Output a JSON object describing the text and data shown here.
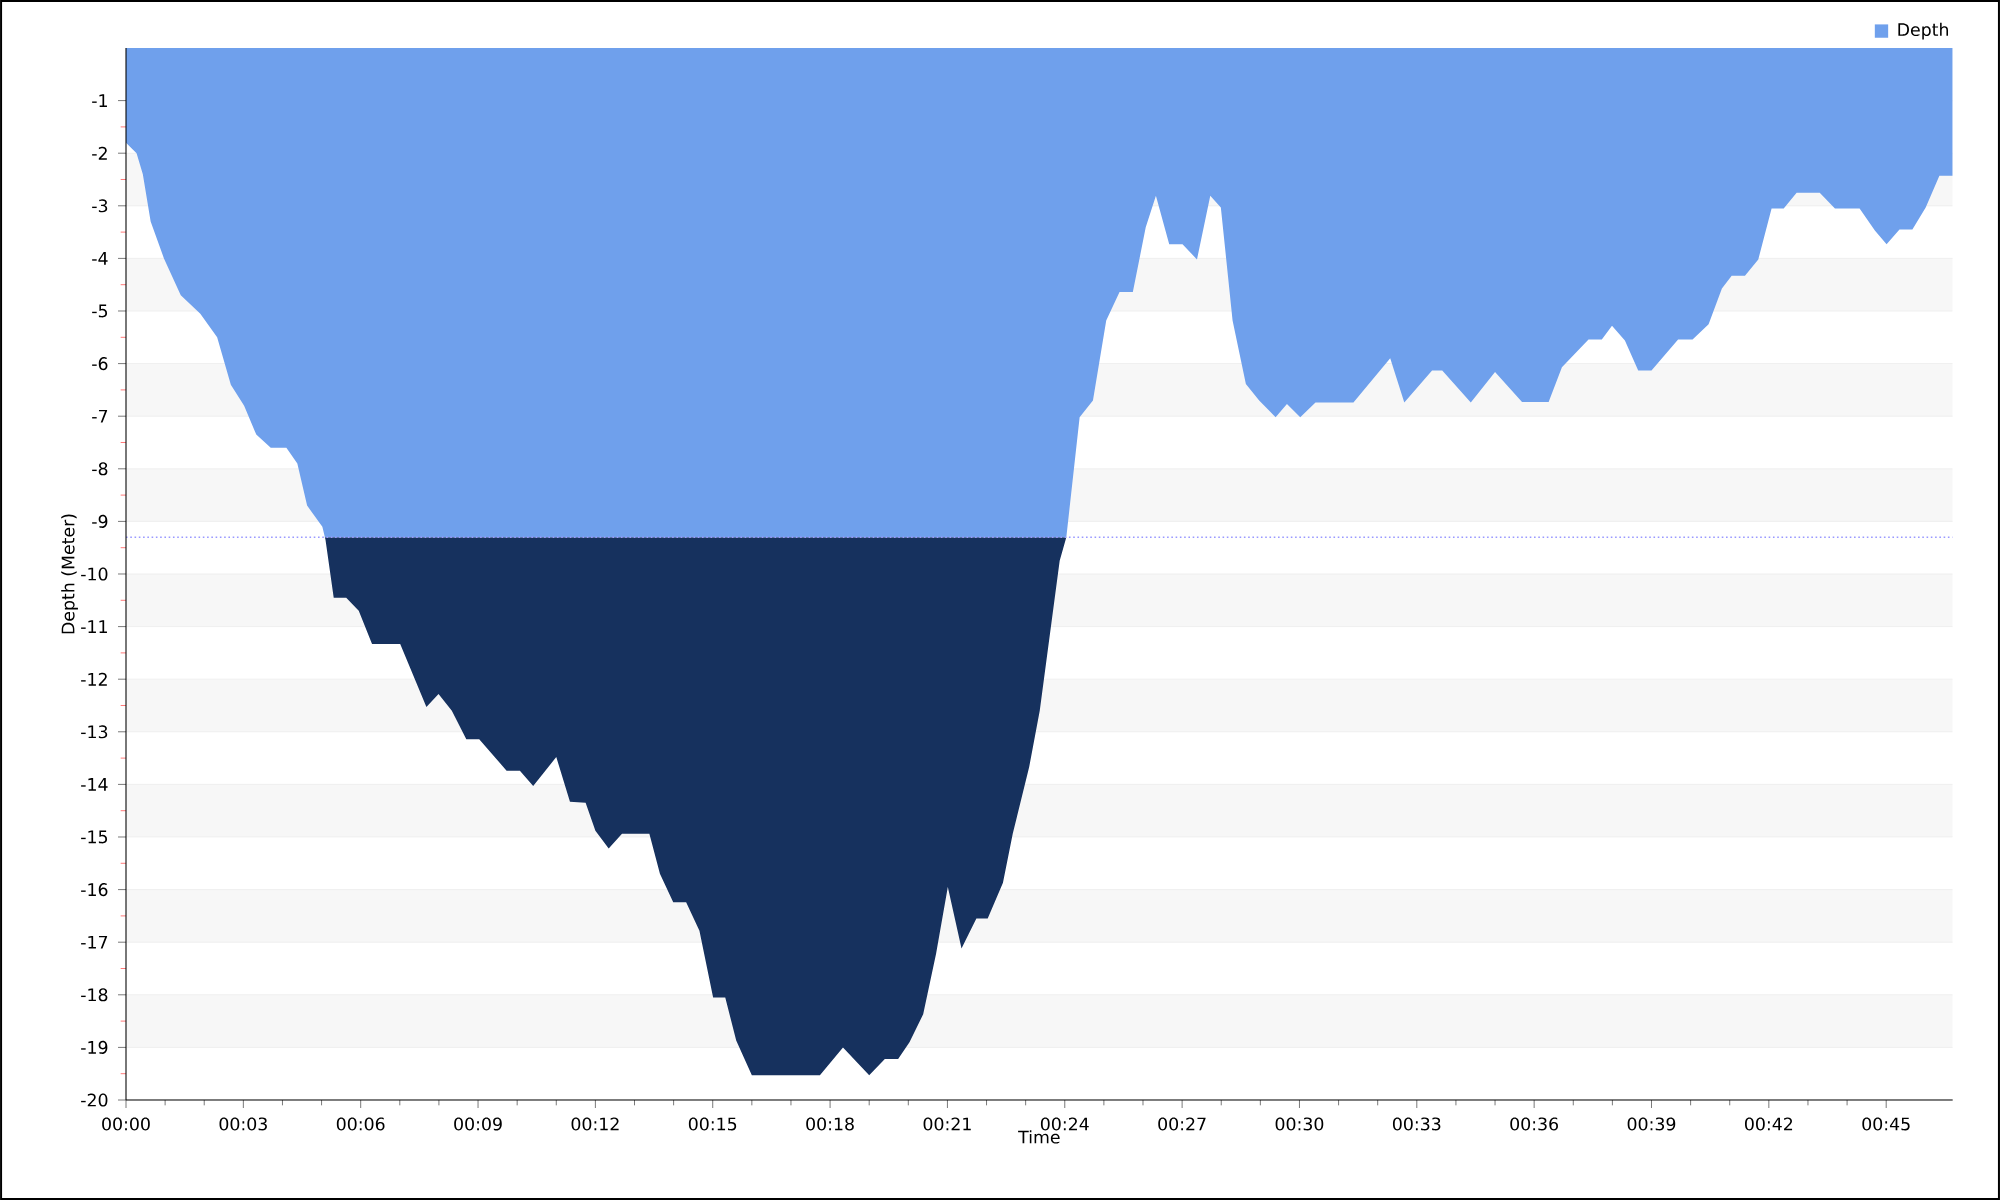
{
  "chart_data": {
    "type": "area",
    "xlabel": "Time",
    "ylabel": "Depth (Meter)",
    "x": [
      0,
      0.27,
      0.43,
      0.63,
      0.97,
      1.4,
      1.9,
      2.33,
      2.68,
      3.02,
      3.33,
      3.7,
      4.1,
      4.38,
      4.63,
      5.02,
      5.1,
      5.31,
      5.63,
      5.95,
      6.29,
      7.01,
      7.68,
      7.99,
      8.33,
      8.7,
      9.03,
      9.73,
      10.07,
      10.41,
      11.0,
      11.35,
      11.75,
      12.0,
      12.34,
      12.68,
      13.38,
      13.65,
      13.99,
      14.32,
      14.66,
      15.01,
      15.32,
      15.6,
      16.0,
      17.74,
      18.33,
      19.0,
      19.4,
      19.74,
      20.03,
      20.38,
      20.71,
      21.01,
      21.36,
      21.74,
      22.03,
      22.42,
      22.67,
      23.09,
      23.36,
      23.87,
      24.04,
      24.38,
      24.72,
      25.06,
      25.4,
      25.74,
      26.07,
      26.33,
      26.67,
      27.01,
      27.38,
      27.72,
      27.99,
      28.29,
      28.63,
      28.97,
      29.39,
      29.68,
      30.02,
      30.41,
      31.38,
      32.32,
      32.68,
      33.39,
      33.65,
      34.38,
      35.0,
      35.69,
      36.37,
      36.71,
      37.39,
      37.73,
      37.99,
      38.32,
      38.66,
      39.0,
      39.68,
      40.05,
      40.46,
      40.8,
      41.05,
      41.39,
      41.73,
      42.07,
      42.38,
      42.71,
      43.3,
      43.69,
      44.32,
      44.71,
      45.01,
      45.34,
      45.67,
      46.01,
      46.36,
      46.7
    ],
    "series": [
      {
        "name": "Depth",
        "color": "#6fa0ec",
        "values": [
          -1.8,
          -2.0,
          -2.4,
          -3.3,
          -4.0,
          -4.7,
          -5.05,
          -5.5,
          -6.4,
          -6.8,
          -7.35,
          -7.6,
          -7.6,
          -7.9,
          -8.7,
          -9.1,
          -9.35,
          -10.45,
          -10.45,
          -10.7,
          -11.33,
          -11.33,
          -12.53,
          -12.28,
          -12.6,
          -13.14,
          -13.14,
          -13.74,
          -13.74,
          -14.03,
          -13.48,
          -14.33,
          -14.35,
          -14.88,
          -15.22,
          -14.94,
          -14.94,
          -15.7,
          -16.24,
          -16.24,
          -16.78,
          -18.05,
          -18.05,
          -18.87,
          -19.53,
          -19.53,
          -19.0,
          -19.53,
          -19.22,
          -19.22,
          -18.9,
          -18.37,
          -17.22,
          -15.95,
          -17.12,
          -16.55,
          -16.55,
          -15.87,
          -14.94,
          -13.67,
          -12.6,
          -9.75,
          -9.3,
          -7.02,
          -6.7,
          -5.18,
          -4.64,
          -4.64,
          -3.41,
          -2.81,
          -3.73,
          -3.73,
          -4.02,
          -2.81,
          -3.03,
          -5.18,
          -6.39,
          -6.7,
          -7.02,
          -6.77,
          -7.02,
          -6.74,
          -6.74,
          -5.9,
          -6.74,
          -6.13,
          -6.13,
          -6.74,
          -6.16,
          -6.73,
          -6.73,
          -6.07,
          -5.54,
          -5.54,
          -5.28,
          -5.56,
          -6.13,
          -6.13,
          -5.54,
          -5.54,
          -5.25,
          -4.57,
          -4.33,
          -4.33,
          -4.02,
          -3.05,
          -3.05,
          -2.75,
          -2.75,
          -3.05,
          -3.05,
          -3.47,
          -3.73,
          -3.45,
          -3.45,
          -3.03,
          -2.43,
          -2.43
        ]
      }
    ],
    "xlim": [
      0,
      46.7
    ],
    "xticks": [
      {
        "value": 0,
        "label": "00:00"
      },
      {
        "value": 3,
        "label": "00:03"
      },
      {
        "value": 6,
        "label": "00:06"
      },
      {
        "value": 9,
        "label": "00:09"
      },
      {
        "value": 12,
        "label": "00:12"
      },
      {
        "value": 15,
        "label": "00:15"
      },
      {
        "value": 18,
        "label": "00:18"
      },
      {
        "value": 21,
        "label": "00:21"
      },
      {
        "value": 24,
        "label": "00:24"
      },
      {
        "value": 27,
        "label": "00:27"
      },
      {
        "value": 30,
        "label": "00:30"
      },
      {
        "value": 33,
        "label": "00:33"
      },
      {
        "value": 36,
        "label": "00:36"
      },
      {
        "value": 39,
        "label": "00:39"
      },
      {
        "value": 42,
        "label": "00:42"
      },
      {
        "value": 45,
        "label": "00:45"
      }
    ],
    "ylim": [
      -20,
      0
    ],
    "yticks": [
      -1,
      -2,
      -3,
      -4,
      -5,
      -6,
      -7,
      -8,
      -9,
      -10,
      -11,
      -12,
      -13,
      -14,
      -15,
      -16,
      -17,
      -18,
      -19,
      -20
    ],
    "ref_lines": [
      {
        "axis": "y",
        "value": -9.3,
        "color": "#9999ff",
        "line_style": "dotted"
      }
    ],
    "bands": [
      {
        "axis": "y",
        "from": -20,
        "to": -9.3,
        "color": "#16315e"
      }
    ],
    "grid": "y",
    "legend": "top right"
  }
}
